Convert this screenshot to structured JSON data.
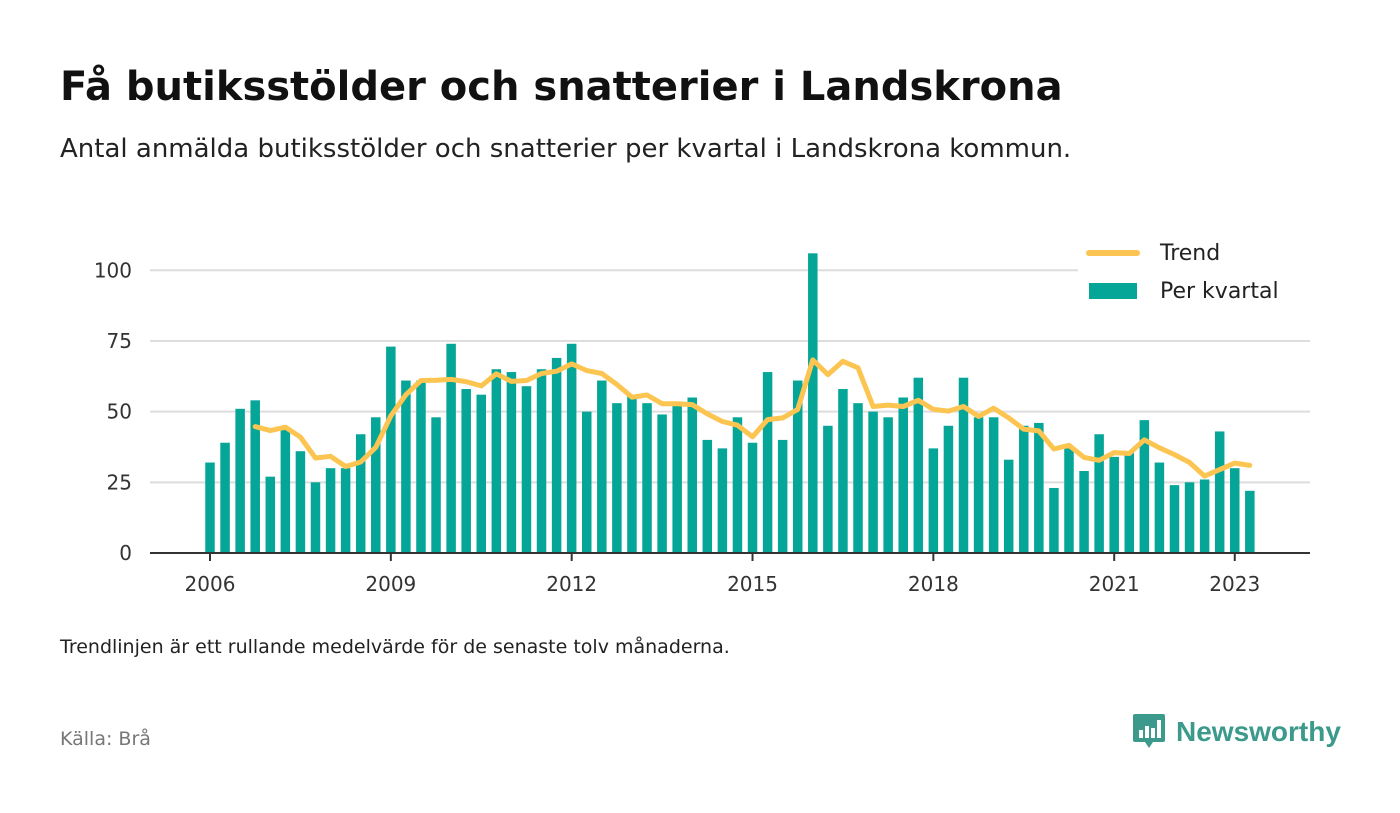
{
  "header": {
    "title": "Få butiksstölder och snatterier i Landskrona",
    "subtitle": "Antal anmälda butiksstölder och snatterier per kvartal i Landskrona kommun."
  },
  "footer": {
    "note": "Trendlinjen är ett rullande medelvärde för de senaste tolv månaderna.",
    "source": "Källa: Brå",
    "brand": "Newsworthy"
  },
  "colors": {
    "bar": "#05a698",
    "trend": "#fcc451",
    "grid": "#dddddd",
    "brand": "#3b9a8c"
  },
  "chart_data": {
    "type": "bar",
    "title": "Få butiksstölder och snatterier i Landskrona",
    "subtitle": "Antal anmälda butiksstölder och snatterier per kvartal i Landskrona kommun.",
    "x_start_year": 2006,
    "x_ticks": [
      "2006",
      "2009",
      "2012",
      "2015",
      "2018",
      "2021",
      "2023"
    ],
    "y_ticks": [
      0,
      25,
      50,
      75,
      100
    ],
    "ylim": [
      0,
      110
    ],
    "legend": {
      "placement": "top-right",
      "entries": [
        "Trend",
        "Per kvartal"
      ]
    },
    "series": [
      {
        "name": "Per kvartal",
        "type": "bar",
        "values": [
          32,
          39,
          51,
          54,
          27,
          44,
          36,
          25,
          30,
          30,
          42,
          48,
          73,
          61,
          61,
          48,
          74,
          58,
          56,
          65,
          64,
          59,
          65,
          69,
          74,
          50,
          61,
          53,
          56,
          53,
          49,
          53,
          55,
          40,
          37,
          48,
          39,
          64,
          40,
          61,
          106,
          45,
          58,
          53,
          50,
          48,
          55,
          62,
          37,
          45,
          62,
          48,
          48,
          33,
          45,
          46,
          23,
          37,
          29,
          42,
          34,
          36,
          47,
          32,
          24,
          25,
          26,
          43,
          30,
          22
        ]
      },
      {
        "name": "Trend",
        "type": "line",
        "values": [
          null,
          null,
          null,
          44.7,
          43.3,
          44.5,
          41,
          33.6,
          34.2,
          30.6,
          32.2,
          37.4,
          48.5,
          56,
          61,
          61.1,
          61.4,
          60.6,
          59.1,
          63.4,
          60.7,
          61,
          63.5,
          64.3,
          66.9,
          64.5,
          63.5,
          59.6,
          55.1,
          55.9,
          52.8,
          52.8,
          52.5,
          49.2,
          46.5,
          45.2,
          41.1,
          47.2,
          47.8,
          50.8,
          68.3,
          63.1,
          67.8,
          65.5,
          51.8,
          52.3,
          51.8,
          54,
          50.8,
          50.2,
          51.8,
          48.3,
          51.2,
          47.8,
          43.8,
          43.2,
          36.8,
          38.1,
          33.8,
          32.8,
          35.5,
          35.2,
          40,
          37.2,
          34.8,
          32,
          27.2,
          29.5,
          31.8,
          31
        ]
      }
    ]
  }
}
